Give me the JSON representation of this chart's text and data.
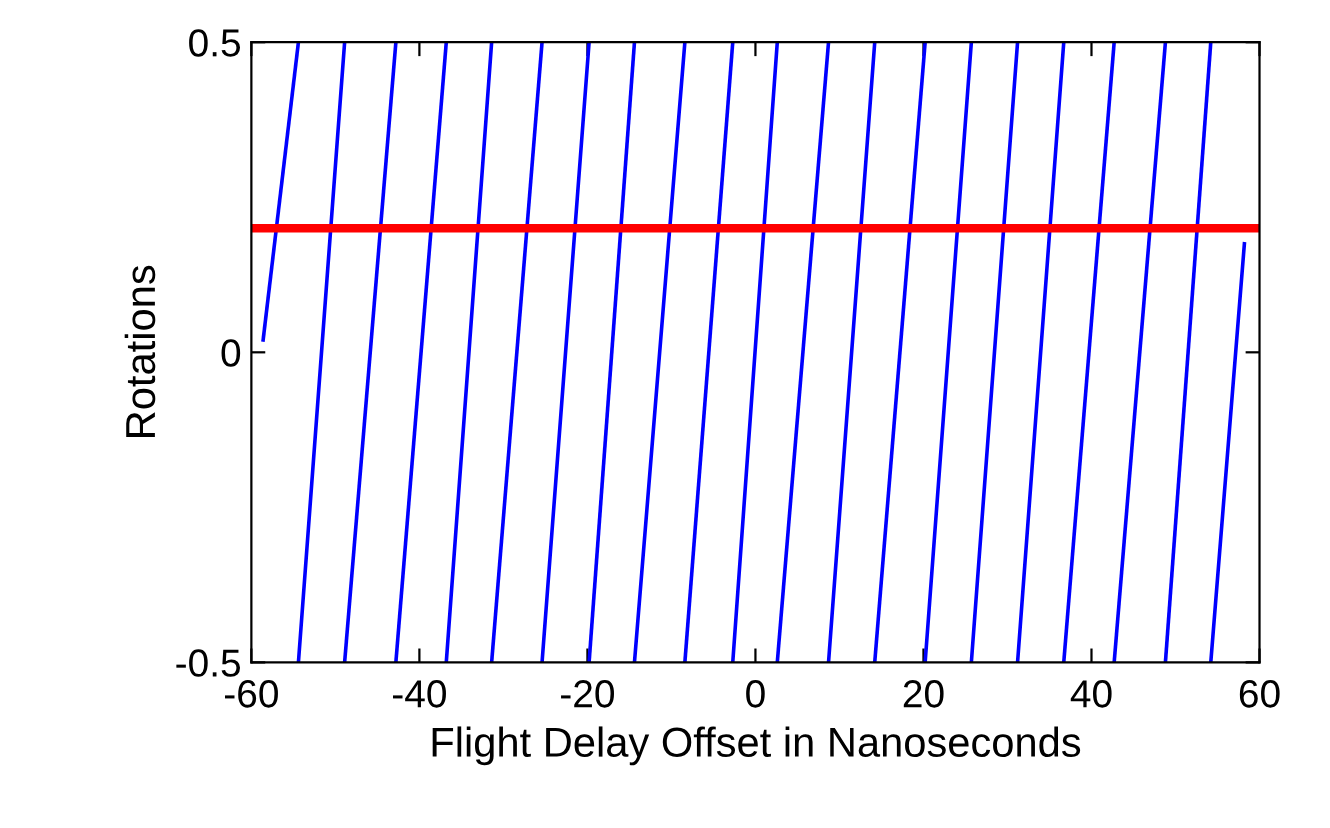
{
  "chart_data": {
    "type": "line",
    "xlabel": "Flight Delay Offset in Nanoseconds",
    "ylabel": "Rotations",
    "series": [
      {
        "color": "#0000ff",
        "x": [
          -58.6,
          -54.4
        ],
        "values": [
          0.02,
          0.5
        ]
      },
      {
        "color": "#0000ff",
        "x": [
          -54.4,
          -48.9
        ],
        "values": [
          -0.5,
          0.5
        ]
      },
      {
        "color": "#0000ff",
        "x": [
          -48.9,
          -42.8
        ],
        "values": [
          -0.5,
          0.5
        ]
      },
      {
        "color": "#0000ff",
        "x": [
          -42.8,
          -36.8
        ],
        "values": [
          -0.5,
          0.5
        ]
      },
      {
        "color": "#0000ff",
        "x": [
          -36.8,
          -31.4
        ],
        "values": [
          -0.5,
          0.5
        ]
      },
      {
        "color": "#0000ff",
        "x": [
          -31.4,
          -25.4
        ],
        "values": [
          -0.5,
          0.5
        ]
      },
      {
        "color": "#0000ff",
        "x": [
          -25.4,
          -19.8
        ],
        "values": [
          -0.5,
          0.5
        ]
      },
      {
        "color": "#0000ff",
        "x": [
          -19.8,
          -14.4
        ],
        "values": [
          -0.5,
          0.5
        ]
      },
      {
        "color": "#0000ff",
        "x": [
          -14.4,
          -8.4
        ],
        "values": [
          -0.5,
          0.5
        ]
      },
      {
        "color": "#0000ff",
        "x": [
          -8.4,
          -2.7
        ],
        "values": [
          -0.5,
          0.5
        ]
      },
      {
        "color": "#0000ff",
        "x": [
          -2.7,
          2.6
        ],
        "values": [
          -0.5,
          0.5
        ]
      },
      {
        "color": "#0000ff",
        "x": [
          2.6,
          8.7
        ],
        "values": [
          -0.5,
          0.5
        ]
      },
      {
        "color": "#0000ff",
        "x": [
          8.7,
          14.2
        ],
        "values": [
          -0.5,
          0.5
        ]
      },
      {
        "color": "#0000ff",
        "x": [
          14.2,
          20.2
        ],
        "values": [
          -0.5,
          0.5
        ]
      },
      {
        "color": "#0000ff",
        "x": [
          20.2,
          25.7
        ],
        "values": [
          -0.5,
          0.5
        ]
      },
      {
        "color": "#0000ff",
        "x": [
          25.7,
          31.2
        ],
        "values": [
          -0.5,
          0.5
        ]
      },
      {
        "color": "#0000ff",
        "x": [
          31.2,
          36.7
        ],
        "values": [
          -0.5,
          0.5
        ]
      },
      {
        "color": "#0000ff",
        "x": [
          36.7,
          42.7
        ],
        "values": [
          -0.5,
          0.5
        ]
      },
      {
        "color": "#0000ff",
        "x": [
          42.7,
          48.8
        ],
        "values": [
          -0.5,
          0.5
        ]
      },
      {
        "color": "#0000ff",
        "x": [
          48.8,
          54.2
        ],
        "values": [
          -0.5,
          0.5
        ]
      },
      {
        "color": "#0000ff",
        "x": [
          54.2,
          58.2
        ],
        "values": [
          -0.5,
          0.175
        ]
      }
    ],
    "ref_lines": [
      {
        "axis": "y",
        "value": 0.2,
        "color": "#ff0000"
      }
    ],
    "xlim": [
      -60,
      60
    ],
    "xticks": [
      -60,
      -40,
      -20,
      0,
      20,
      40,
      60
    ],
    "ylim": [
      -0.5,
      0.5
    ],
    "yticks": [
      -0.5,
      0,
      0.5
    ],
    "grid": false,
    "marker": "none",
    "line_style": "solid"
  }
}
